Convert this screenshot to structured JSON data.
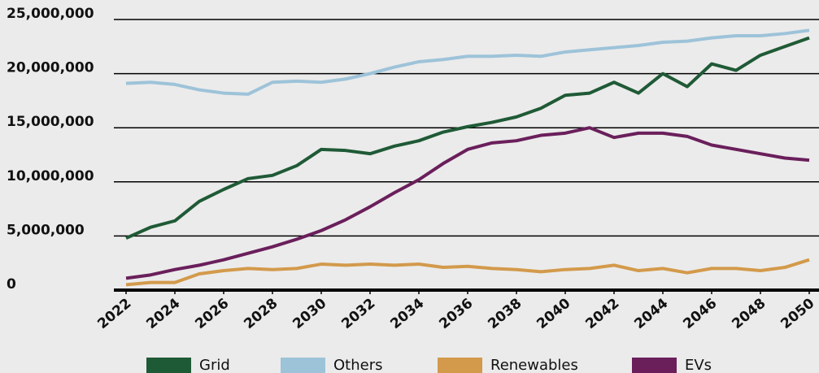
{
  "chart_data": {
    "type": "line",
    "x": [
      2022,
      2023,
      2024,
      2025,
      2026,
      2027,
      2028,
      2029,
      2030,
      2031,
      2032,
      2033,
      2034,
      2035,
      2036,
      2037,
      2038,
      2039,
      2040,
      2041,
      2042,
      2043,
      2044,
      2045,
      2046,
      2047,
      2048,
      2049,
      2050
    ],
    "series": [
      {
        "name": "Grid",
        "color": "#1f5a36",
        "values": [
          4800000,
          5800000,
          6400000,
          8200000,
          9300000,
          10300000,
          10600000,
          11500000,
          13000000,
          12900000,
          12600000,
          13300000,
          13800000,
          14600000,
          15100000,
          15500000,
          16000000,
          16800000,
          18000000,
          18200000,
          19200000,
          18200000,
          20000000,
          18800000,
          20900000,
          20300000,
          21700000,
          22500000,
          23300000
        ]
      },
      {
        "name": "Others",
        "color": "#9dc3d9",
        "values": [
          19100000,
          19200000,
          19000000,
          18500000,
          18200000,
          18100000,
          19200000,
          19300000,
          19200000,
          19500000,
          20000000,
          20600000,
          21100000,
          21300000,
          21600000,
          21600000,
          21700000,
          21600000,
          22000000,
          22200000,
          22400000,
          22600000,
          22900000,
          23000000,
          23300000,
          23500000,
          23500000,
          23700000,
          24000000
        ]
      },
      {
        "name": "Renewables",
        "color": "#d39a4b",
        "values": [
          500000,
          700000,
          700000,
          1500000,
          1800000,
          2000000,
          1900000,
          2000000,
          2400000,
          2300000,
          2400000,
          2300000,
          2400000,
          2100000,
          2200000,
          2000000,
          1900000,
          1700000,
          1900000,
          2000000,
          2300000,
          1800000,
          2000000,
          1600000,
          2000000,
          2000000,
          1800000,
          2100000,
          2800000
        ]
      },
      {
        "name": "EVs",
        "color": "#6a1f5b",
        "values": [
          1100000,
          1400000,
          1900000,
          2300000,
          2800000,
          3400000,
          4000000,
          4700000,
          5500000,
          6500000,
          7700000,
          9000000,
          10200000,
          11700000,
          13000000,
          13600000,
          13800000,
          14300000,
          14500000,
          15000000,
          14100000,
          14500000,
          14500000,
          14200000,
          13400000,
          13000000,
          12600000,
          12200000,
          12000000
        ]
      }
    ],
    "xlim": [
      2022,
      2050
    ],
    "xticks": [
      2022,
      2024,
      2026,
      2028,
      2030,
      2032,
      2034,
      2036,
      2038,
      2040,
      2042,
      2044,
      2046,
      2048,
      2050
    ],
    "ylim": [
      0,
      25000000
    ],
    "yticks": [
      0,
      {
        "value": 5000000,
        "label": "5,000,000"
      },
      {
        "value": 10000000,
        "label": "10,000,000"
      },
      {
        "value": 15000000,
        "label": "15,000,000"
      },
      {
        "value": 20000000,
        "label": "20,000,000"
      },
      {
        "value": 25000000,
        "label": "25,000,000"
      }
    ],
    "grid": true,
    "legend": "bottom"
  }
}
